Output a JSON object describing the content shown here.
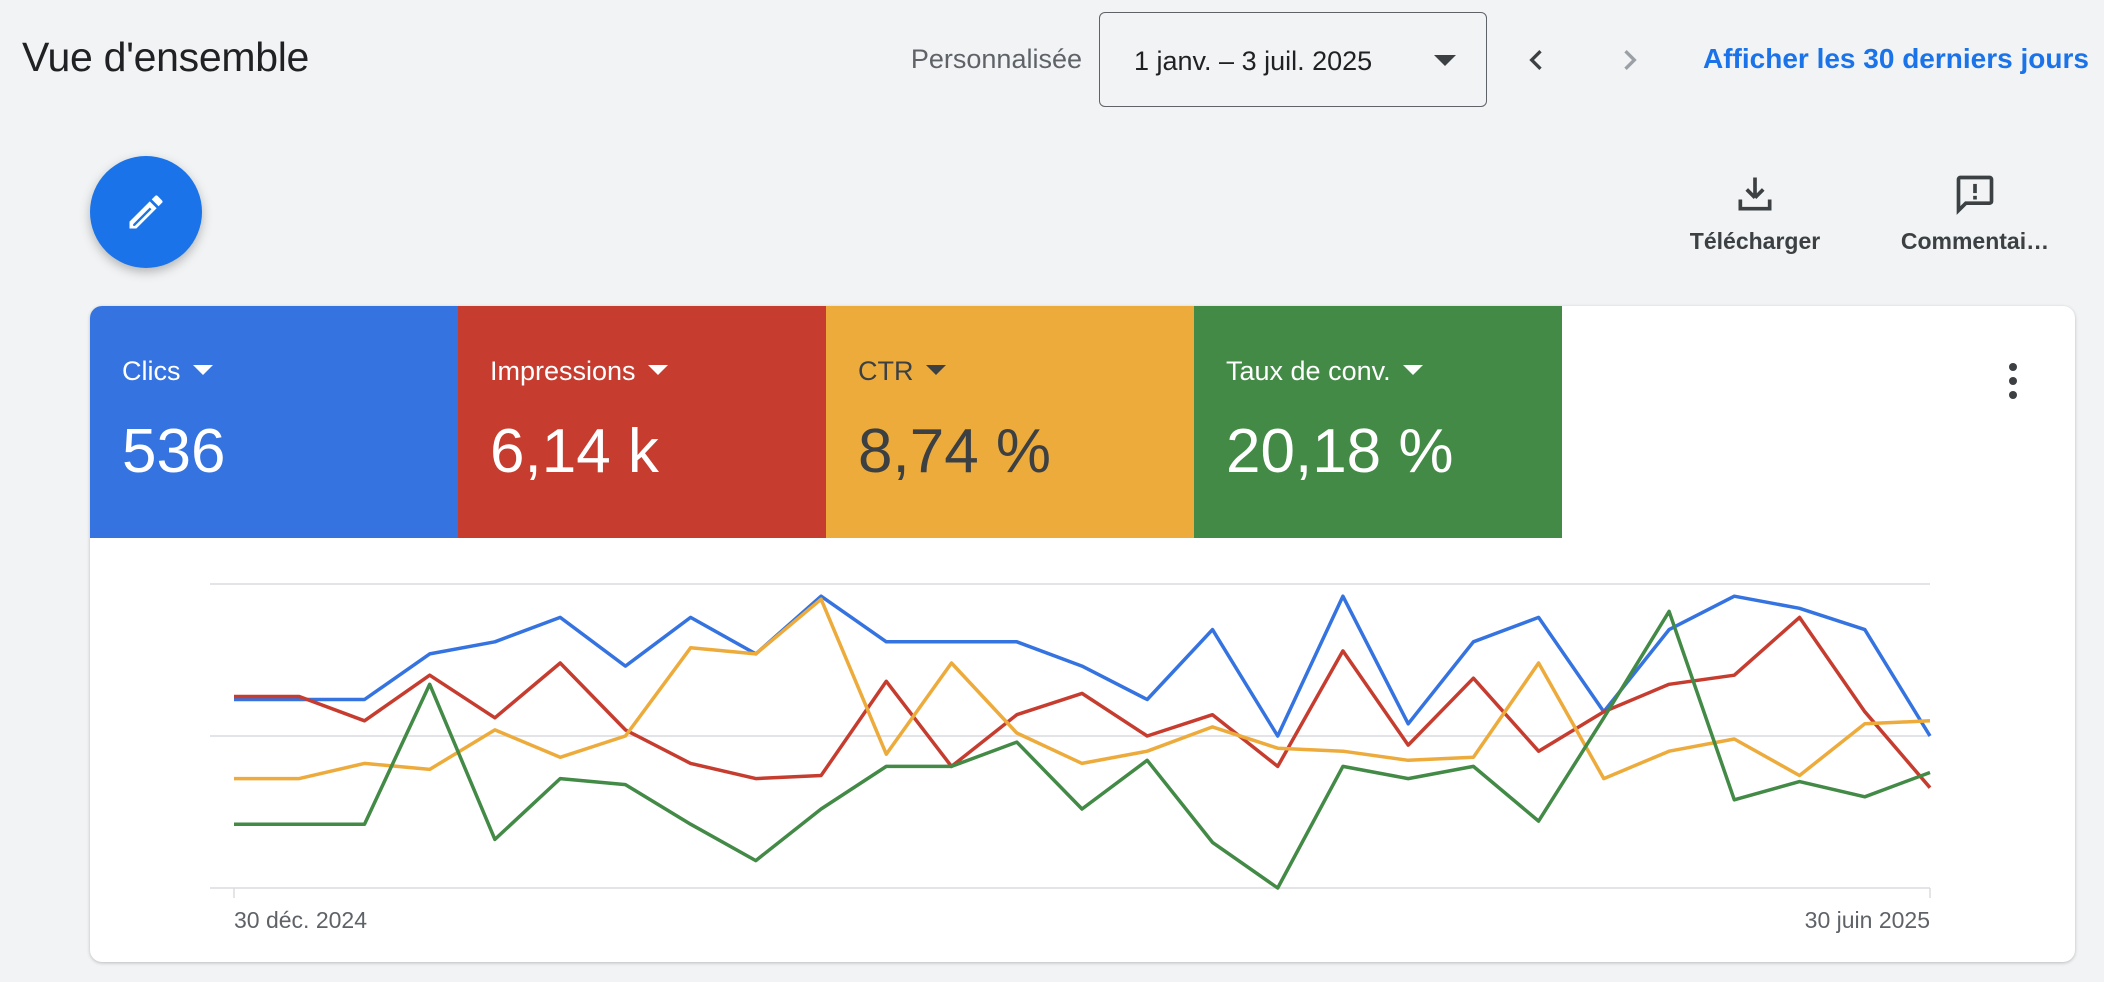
{
  "header": {
    "title": "Vue d'ensemble",
    "period_label": "Personnalisée",
    "date_range": "1 janv. – 3 juil. 2025",
    "last30_link": "Afficher les 30 derniers jours"
  },
  "toolbar": {
    "fab_icon": "pencil-icon",
    "download_label": "Télécharger",
    "feedback_label": "Commentai…"
  },
  "metrics": [
    {
      "label": "Clics",
      "value": "536",
      "color": "#3573e1"
    },
    {
      "label": "Impressions",
      "value": "6,14 k",
      "color": "#c63d30"
    },
    {
      "label": "CTR",
      "value": "8,74 %",
      "color": "#edab3c"
    },
    {
      "label": "Taux de conv.",
      "value": "20,18 %",
      "color": "#428a46"
    }
  ],
  "chart_data": {
    "type": "line",
    "x_tick_labels": [
      "30 déc. 2024",
      "30 juin 2025"
    ],
    "y_range": [
      0,
      100
    ],
    "grid": true,
    "series": [
      {
        "color": "#3573e1",
        "values": [
          62,
          62,
          62,
          77,
          81,
          89,
          73,
          89,
          77,
          96,
          81,
          81,
          81,
          73,
          62,
          85,
          50,
          96,
          54,
          81,
          89,
          58,
          85,
          96,
          92,
          85,
          50
        ]
      },
      {
        "color": "#c63d30",
        "values": [
          63,
          63,
          55,
          70,
          56,
          74,
          52,
          41,
          36,
          37,
          68,
          40,
          57,
          64,
          50,
          57,
          40,
          78,
          47,
          69,
          45,
          58,
          67,
          70,
          89,
          58,
          33
        ]
      },
      {
        "color": "#edab3c",
        "values": [
          36,
          36,
          41,
          39,
          52,
          43,
          50,
          79,
          77,
          95,
          44,
          74,
          51,
          41,
          45,
          53,
          46,
          45,
          42,
          43,
          74,
          36,
          45,
          49,
          37,
          54,
          55
        ]
      },
      {
        "color": "#428a46",
        "values": [
          21,
          21,
          21,
          67,
          16,
          36,
          34,
          21,
          9,
          26,
          40,
          40,
          48,
          26,
          42,
          15,
          0,
          40,
          36,
          40,
          22,
          56,
          91,
          29,
          35,
          30,
          38
        ]
      }
    ]
  }
}
